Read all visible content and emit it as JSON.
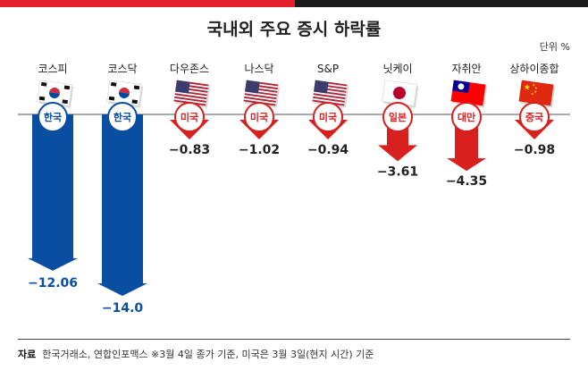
{
  "title": "국내외 주요 증시 하락률",
  "unit": "단위 %",
  "colors": {
    "accent": "#e4202a",
    "dark": "#1a1a1a",
    "korea": "#0a4ea2",
    "foreign": "#d8201f"
  },
  "chart_data": {
    "type": "bar",
    "title": "국내외 주요 증시 하락률",
    "ylabel": "단위 %",
    "ylim": [
      -14.5,
      0
    ],
    "categories": [
      "코스피",
      "코스닥",
      "다우존스",
      "나스닥",
      "S&P",
      "닛케이",
      "자취안",
      "상하이종합"
    ],
    "values": [
      -12.06,
      -14.0,
      -0.83,
      -1.02,
      -0.94,
      -3.61,
      -4.35,
      -0.98
    ],
    "value_labels": [
      "−12.06",
      "−14.0",
      "−0.83",
      "−1.02",
      "−0.94",
      "−3.61",
      "−4.35",
      "−0.98"
    ],
    "countries": [
      "한국",
      "한국",
      "미국",
      "미국",
      "미국",
      "일본",
      "대만",
      "중국"
    ],
    "flags": [
      "korea-flag-icon",
      "korea-flag-icon",
      "usa-flag-icon",
      "usa-flag-icon",
      "usa-flag-icon",
      "japan-flag-icon",
      "taiwan-flag-icon",
      "china-flag-icon"
    ]
  },
  "footer": {
    "source_label": "자료",
    "source_text": "한국거래소, 연합인포맥스 ※3월 4일 종가 기준, 미국은 3월 3일(현지 시간) 기준"
  }
}
